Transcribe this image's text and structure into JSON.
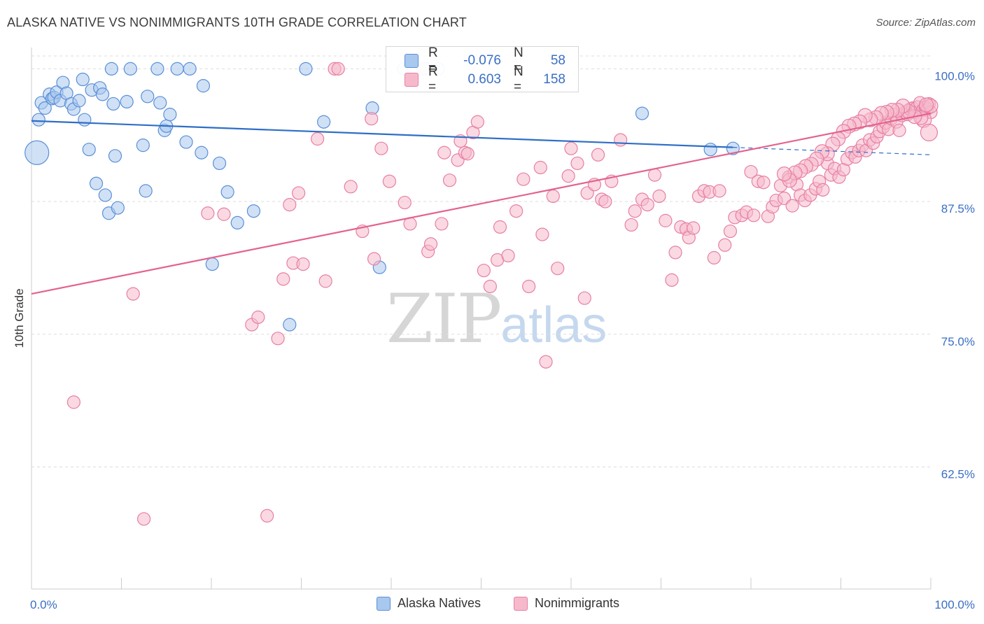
{
  "title": "ALASKA NATIVE VS NONIMMIGRANTS 10TH GRADE CORRELATION CHART",
  "source": "Source: ZipAtlas.com",
  "watermark": {
    "zip": "ZIP",
    "atlas": "atlas"
  },
  "colors": {
    "blue_fill": "#a9c8ef",
    "blue_stroke": "#5b8fd6",
    "blue_line": "#2f6ec7",
    "pink_fill": "#f6b9cc",
    "pink_stroke": "#e77fa3",
    "pink_line": "#e3628e",
    "axis_text": "#3a6fc4",
    "grid": "#dddddd"
  },
  "legend": {
    "rows": [
      {
        "r_label": "R =",
        "r_value": "-0.076",
        "n_label": "N =",
        "n_value": "58"
      },
      {
        "r_label": "R =",
        "r_value": "0.603",
        "n_label": "N =",
        "n_value": "158"
      }
    ]
  },
  "bottom_legend": {
    "series_a": "Alaska Natives",
    "series_b": "Nonimmigrants"
  },
  "chart_data": {
    "type": "scatter",
    "ylabel": "10th Grade",
    "x_tick_labels": {
      "left": "0.0%",
      "right": "100.0%"
    },
    "xlim": [
      0,
      100
    ],
    "ylim": [
      51,
      102
    ],
    "y_ticks": [
      {
        "value": 100.0,
        "label": "100.0%"
      },
      {
        "value": 87.5,
        "label": "87.5%"
      },
      {
        "value": 75.0,
        "label": "75.0%"
      },
      {
        "value": 62.5,
        "label": "62.5%"
      }
    ],
    "series": [
      {
        "name": "Alaska Natives",
        "color": "blue",
        "trend": {
          "x0": 0,
          "y0": 95.1,
          "x1": 78,
          "y1": 92.6,
          "dash_to_x": 100,
          "dash_to_y": 91.9
        },
        "points": [
          [
            0.6,
            92.1,
            16
          ],
          [
            0.8,
            95.2,
            8
          ],
          [
            1.1,
            96.8,
            8
          ],
          [
            1.5,
            96.3,
            8
          ],
          [
            2.0,
            97.6,
            8
          ],
          [
            2.3,
            97.2,
            8
          ],
          [
            2.5,
            97.3,
            8
          ],
          [
            2.8,
            97.8,
            8
          ],
          [
            3.2,
            97.0,
            8
          ],
          [
            3.5,
            98.7,
            8
          ],
          [
            3.9,
            97.7,
            8
          ],
          [
            4.4,
            96.7,
            8
          ],
          [
            4.7,
            96.2,
            8
          ],
          [
            5.3,
            97.0,
            8
          ],
          [
            5.7,
            99.0,
            8
          ],
          [
            5.9,
            95.2,
            8
          ],
          [
            6.4,
            92.4,
            8
          ],
          [
            6.7,
            98.0,
            8
          ],
          [
            7.2,
            89.2,
            8
          ],
          [
            7.6,
            98.2,
            8
          ],
          [
            7.9,
            97.6,
            8
          ],
          [
            8.2,
            88.1,
            8
          ],
          [
            8.6,
            86.4,
            8
          ],
          [
            8.9,
            100.0,
            8
          ],
          [
            9.1,
            96.7,
            8
          ],
          [
            9.3,
            91.8,
            8
          ],
          [
            9.6,
            86.9,
            8
          ],
          [
            10.6,
            96.9,
            8
          ],
          [
            11.0,
            100.0,
            8
          ],
          [
            12.4,
            92.8,
            8
          ],
          [
            12.7,
            88.5,
            8
          ],
          [
            12.9,
            97.4,
            8
          ],
          [
            14.0,
            100.0,
            8
          ],
          [
            14.3,
            96.8,
            8
          ],
          [
            14.8,
            94.2,
            8
          ],
          [
            15.0,
            94.6,
            8
          ],
          [
            15.4,
            95.7,
            8
          ],
          [
            16.2,
            100.0,
            8
          ],
          [
            17.2,
            93.1,
            8
          ],
          [
            17.6,
            100.0,
            8
          ],
          [
            18.9,
            92.1,
            8
          ],
          [
            19.1,
            98.4,
            8
          ],
          [
            20.1,
            81.6,
            8
          ],
          [
            20.9,
            91.1,
            8
          ],
          [
            21.8,
            88.4,
            8
          ],
          [
            22.9,
            85.5,
            8
          ],
          [
            24.7,
            86.6,
            8
          ],
          [
            28.7,
            75.9,
            8
          ],
          [
            30.5,
            100.0,
            8
          ],
          [
            32.5,
            95.0,
            8
          ],
          [
            37.9,
            96.3,
            8
          ],
          [
            38.7,
            81.3,
            8
          ],
          [
            41.4,
            100.0,
            8
          ],
          [
            43.8,
            100.0,
            8
          ],
          [
            45.2,
            100.0,
            8
          ],
          [
            67.9,
            95.8,
            8
          ],
          [
            78.0,
            92.5,
            8
          ],
          [
            75.5,
            92.4,
            8
          ]
        ]
      },
      {
        "name": "Nonimmigrants",
        "color": "pink",
        "trend": {
          "x0": 0,
          "y0": 78.8,
          "x1": 100,
          "y1": 95.8
        },
        "points": [
          [
            4.7,
            68.6,
            8
          ],
          [
            11.3,
            78.8,
            8
          ],
          [
            12.5,
            57.6,
            8
          ],
          [
            19.6,
            86.4,
            8
          ],
          [
            21.4,
            86.3,
            8
          ],
          [
            24.5,
            75.9,
            8
          ],
          [
            25.2,
            76.6,
            8
          ],
          [
            26.2,
            57.9,
            8
          ],
          [
            27.4,
            74.6,
            8
          ],
          [
            28.0,
            80.2,
            8
          ],
          [
            28.7,
            87.2,
            8
          ],
          [
            29.1,
            81.7,
            8
          ],
          [
            29.7,
            88.3,
            8
          ],
          [
            30.2,
            81.6,
            8
          ],
          [
            31.8,
            93.4,
            8
          ],
          [
            32.7,
            80.0,
            8
          ],
          [
            33.7,
            100.0,
            8
          ],
          [
            34.1,
            100.0,
            8
          ],
          [
            35.5,
            88.9,
            8
          ],
          [
            36.8,
            84.7,
            8
          ],
          [
            37.8,
            95.3,
            8
          ],
          [
            38.1,
            82.1,
            8
          ],
          [
            38.9,
            92.5,
            8
          ],
          [
            39.8,
            89.4,
            8
          ],
          [
            41.5,
            87.4,
            8
          ],
          [
            42.1,
            85.4,
            8
          ],
          [
            43.5,
            100.0,
            8
          ],
          [
            44.1,
            82.8,
            8
          ],
          [
            44.4,
            83.5,
            8
          ],
          [
            45.6,
            85.4,
            8
          ],
          [
            45.9,
            92.1,
            8
          ],
          [
            46.5,
            89.5,
            8
          ],
          [
            47.4,
            91.4,
            8
          ],
          [
            47.7,
            93.2,
            8
          ],
          [
            48.2,
            92.1,
            8
          ],
          [
            48.5,
            92.0,
            8
          ],
          [
            49.1,
            94.0,
            8
          ],
          [
            49.6,
            95.0,
            8
          ],
          [
            50.3,
            81.0,
            8
          ],
          [
            51.0,
            79.5,
            8
          ],
          [
            51.8,
            82.0,
            8
          ],
          [
            52.1,
            85.1,
            8
          ],
          [
            53.0,
            82.4,
            8
          ],
          [
            53.9,
            86.6,
            8
          ],
          [
            54.7,
            89.6,
            8
          ],
          [
            55.3,
            79.5,
            8
          ],
          [
            56.6,
            90.7,
            8
          ],
          [
            56.8,
            84.4,
            8
          ],
          [
            57.2,
            72.4,
            8
          ],
          [
            58.0,
            88.0,
            8
          ],
          [
            58.5,
            81.2,
            8
          ],
          [
            59.7,
            89.9,
            8
          ],
          [
            60.0,
            92.5,
            8
          ],
          [
            60.7,
            91.1,
            8
          ],
          [
            61.5,
            78.4,
            8
          ],
          [
            61.8,
            88.3,
            8
          ],
          [
            62.6,
            89.1,
            8
          ],
          [
            63.0,
            91.9,
            8
          ],
          [
            63.4,
            87.7,
            8
          ],
          [
            63.8,
            87.5,
            8
          ],
          [
            64.5,
            89.4,
            8
          ],
          [
            65.5,
            93.3,
            8
          ],
          [
            66.7,
            85.3,
            8
          ],
          [
            67.1,
            86.6,
            8
          ],
          [
            67.9,
            87.7,
            8
          ],
          [
            68.5,
            87.2,
            8
          ],
          [
            69.3,
            90.0,
            8
          ],
          [
            69.8,
            88.0,
            8
          ],
          [
            70.5,
            85.7,
            8
          ],
          [
            71.2,
            80.1,
            8
          ],
          [
            71.6,
            82.7,
            8
          ],
          [
            72.2,
            85.1,
            8
          ],
          [
            72.8,
            84.9,
            8
          ],
          [
            73.1,
            84.1,
            8
          ],
          [
            73.6,
            85.0,
            8
          ],
          [
            74.2,
            88.0,
            8
          ],
          [
            74.8,
            88.5,
            8
          ],
          [
            75.4,
            88.4,
            8
          ],
          [
            75.9,
            82.2,
            8
          ],
          [
            76.5,
            88.5,
            8
          ],
          [
            77.1,
            83.4,
            8
          ],
          [
            77.7,
            84.7,
            8
          ],
          [
            78.2,
            86.0,
            8
          ],
          [
            79.0,
            86.2,
            8
          ],
          [
            79.5,
            86.5,
            8
          ],
          [
            80.0,
            90.3,
            8
          ],
          [
            80.3,
            86.2,
            8
          ],
          [
            80.8,
            89.4,
            8
          ],
          [
            81.4,
            89.3,
            8
          ],
          [
            81.9,
            86.1,
            8
          ],
          [
            82.4,
            87.0,
            8
          ],
          [
            82.8,
            87.6,
            8
          ],
          [
            83.3,
            89.0,
            8
          ],
          [
            83.7,
            87.8,
            8
          ],
          [
            84.2,
            89.8,
            8
          ],
          [
            84.6,
            87.1,
            8
          ],
          [
            85.1,
            89.1,
            8
          ],
          [
            85.5,
            88.1,
            8
          ],
          [
            86.0,
            87.6,
            8
          ],
          [
            86.6,
            88.1,
            8
          ],
          [
            87.2,
            88.7,
            8
          ],
          [
            87.6,
            89.4,
            8
          ],
          [
            88.0,
            88.6,
            8
          ],
          [
            88.5,
            91.1,
            8
          ],
          [
            88.9,
            90.0,
            8
          ],
          [
            89.3,
            90.6,
            8
          ],
          [
            89.8,
            89.8,
            8
          ],
          [
            90.3,
            90.5,
            8
          ],
          [
            90.7,
            91.5,
            8
          ],
          [
            91.2,
            92.1,
            8
          ],
          [
            91.6,
            91.7,
            8
          ],
          [
            92.0,
            92.3,
            8
          ],
          [
            92.4,
            92.8,
            8
          ],
          [
            92.8,
            92.3,
            8
          ],
          [
            93.2,
            93.3,
            8
          ],
          [
            93.6,
            93.0,
            8
          ],
          [
            94.0,
            93.6,
            8
          ],
          [
            94.3,
            94.1,
            8
          ],
          [
            94.7,
            94.5,
            8
          ],
          [
            95.0,
            94.9,
            8
          ],
          [
            95.3,
            94.3,
            8
          ],
          [
            95.6,
            95.3,
            8
          ],
          [
            95.9,
            95.7,
            8
          ],
          [
            96.2,
            95.0,
            8
          ],
          [
            96.5,
            94.2,
            8
          ],
          [
            96.8,
            95.6,
            8
          ],
          [
            97.1,
            95.9,
            8
          ],
          [
            97.4,
            95.7,
            8
          ],
          [
            97.7,
            96.2,
            8
          ],
          [
            98.0,
            96.3,
            8
          ],
          [
            98.3,
            95.9,
            8
          ],
          [
            98.5,
            96.4,
            8
          ],
          [
            98.8,
            96.8,
            8
          ],
          [
            99.1,
            96.1,
            8
          ],
          [
            99.4,
            96.4,
            8
          ],
          [
            99.6,
            96.2,
            8
          ],
          [
            99.8,
            96.7,
            8
          ],
          [
            100.0,
            95.9,
            8
          ],
          [
            99.2,
            95.2,
            10
          ],
          [
            99.8,
            94.0,
            11
          ],
          [
            100.0,
            96.5,
            9
          ],
          [
            99.5,
            96.6,
            9
          ],
          [
            98.9,
            95.4,
            9
          ],
          [
            98.2,
            95.5,
            9
          ],
          [
            97.5,
            96.0,
            9
          ],
          [
            96.9,
            96.5,
            9
          ],
          [
            96.3,
            96.1,
            9
          ],
          [
            95.7,
            96.1,
            9
          ],
          [
            95.1,
            95.9,
            9
          ],
          [
            94.5,
            95.8,
            9
          ],
          [
            93.9,
            95.4,
            9
          ],
          [
            93.3,
            95.2,
            9
          ],
          [
            92.7,
            95.6,
            9
          ],
          [
            92.1,
            95.0,
            9
          ],
          [
            91.5,
            94.8,
            9
          ],
          [
            90.9,
            94.6,
            9
          ],
          [
            90.3,
            94.1,
            9
          ],
          [
            89.7,
            93.4,
            9
          ],
          [
            89.1,
            92.9,
            9
          ],
          [
            88.5,
            92.0,
            9
          ],
          [
            87.9,
            92.2,
            9
          ],
          [
            87.3,
            91.5,
            9
          ],
          [
            86.7,
            91.0,
            9
          ],
          [
            86.1,
            90.8,
            9
          ],
          [
            85.5,
            90.4,
            9
          ],
          [
            84.9,
            90.2,
            9
          ],
          [
            84.3,
            89.5,
            9
          ],
          [
            83.7,
            90.1,
            9
          ]
        ]
      }
    ]
  }
}
